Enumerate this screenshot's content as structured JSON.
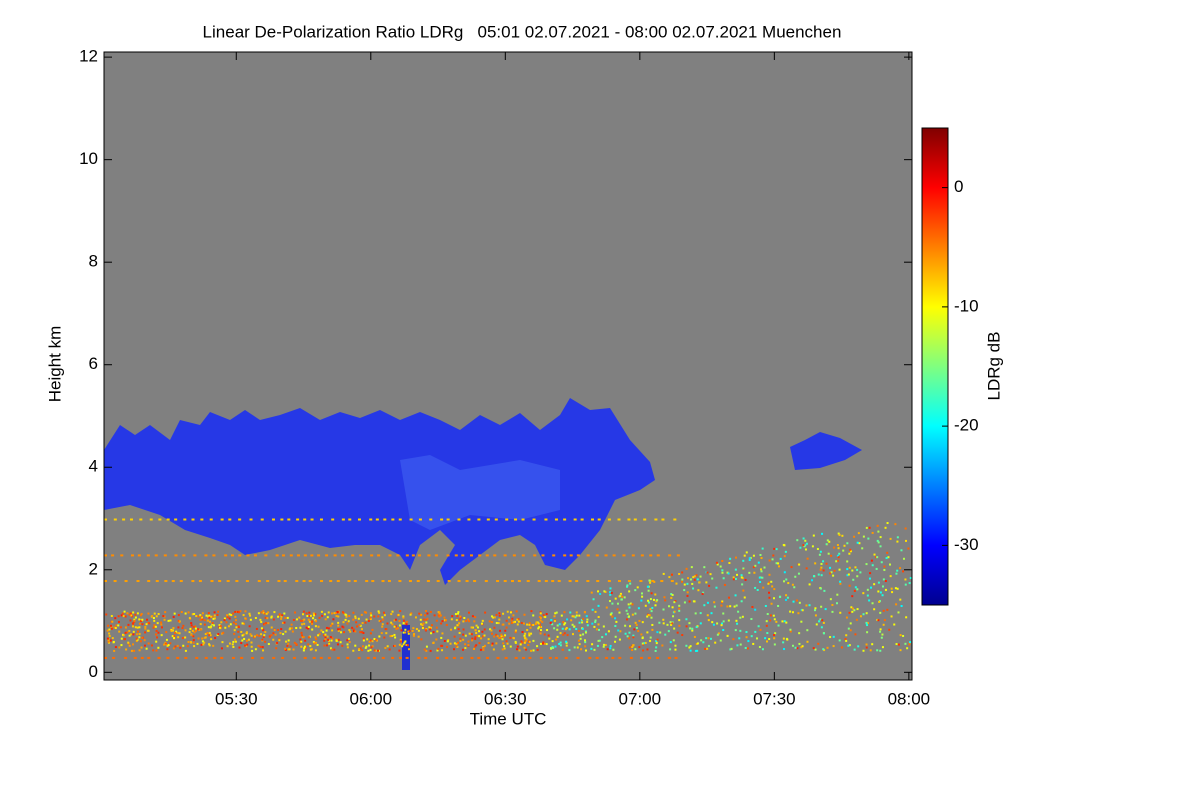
{
  "chart_data": {
    "type": "heatmap",
    "title": "Linear De-Polarization Ratio LDRg   05:01 02.07.2021 - 08:00 02.07.2021 Muenchen",
    "x_label": "Time UTC",
    "y_label": "Height km",
    "colorbar_label": "LDRg dB",
    "xlim": [
      300.5,
      480.7
    ],
    "xticks": [
      {
        "value": 330,
        "label": "05:30"
      },
      {
        "value": 360,
        "label": "06:00"
      },
      {
        "value": 390,
        "label": "06:30"
      },
      {
        "value": 420,
        "label": "07:00"
      },
      {
        "value": 450,
        "label": "07:30"
      },
      {
        "value": 480,
        "label": "08:00"
      }
    ],
    "ylim": [
      -0.15,
      12.1
    ],
    "yticks": [
      0,
      2,
      4,
      6,
      8,
      10,
      12
    ],
    "clim": [
      -35,
      5
    ],
    "cticks": [
      0,
      -10,
      -20,
      -30
    ],
    "colormap": "jet",
    "background": "#808080"
  }
}
